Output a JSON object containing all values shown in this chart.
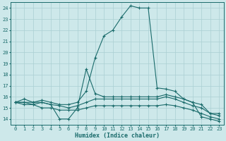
{
  "title": "",
  "xlabel": "Humidex (Indice chaleur)",
  "ylabel": "",
  "bg_color": "#cde8ea",
  "grid_color": "#aacfd2",
  "line_color": "#1a6b6b",
  "xlim": [
    -0.5,
    23.5
  ],
  "ylim": [
    13.5,
    24.5
  ],
  "xticks": [
    0,
    1,
    2,
    3,
    4,
    5,
    6,
    7,
    8,
    9,
    10,
    11,
    12,
    13,
    14,
    15,
    16,
    17,
    18,
    19,
    20,
    21,
    22,
    23
  ],
  "yticks": [
    14,
    15,
    16,
    17,
    18,
    19,
    20,
    21,
    22,
    23,
    24
  ],
  "series": [
    {
      "x": [
        0,
        1,
        2,
        3,
        4,
        5,
        6,
        7,
        8,
        9,
        10,
        11,
        12,
        13,
        14,
        15,
        16,
        17,
        18,
        19,
        20,
        21,
        22,
        23
      ],
      "y": [
        15.5,
        15.8,
        15.5,
        15.7,
        15.5,
        15.3,
        15.3,
        15.5,
        16.5,
        19.5,
        21.5,
        22.0,
        23.2,
        24.2,
        24.0,
        24.0,
        16.8,
        16.7,
        16.5,
        15.8,
        15.5,
        14.2,
        14.0,
        13.8
      ]
    },
    {
      "x": [
        0,
        1,
        2,
        3,
        4,
        5,
        6,
        7,
        8,
        9,
        10,
        11,
        12,
        13,
        14,
        15,
        16,
        17,
        18,
        19,
        20,
        21,
        22,
        23
      ],
      "y": [
        15.5,
        15.5,
        15.3,
        15.5,
        15.3,
        14.0,
        14.0,
        15.0,
        18.5,
        16.3,
        16.0,
        16.0,
        16.0,
        16.0,
        16.0,
        16.0,
        16.0,
        16.2,
        16.0,
        15.8,
        15.5,
        15.3,
        14.5,
        14.5
      ]
    },
    {
      "x": [
        0,
        1,
        2,
        3,
        4,
        5,
        6,
        7,
        8,
        9,
        10,
        11,
        12,
        13,
        14,
        15,
        16,
        17,
        18,
        19,
        20,
        21,
        22,
        23
      ],
      "y": [
        15.5,
        15.5,
        15.5,
        15.5,
        15.3,
        15.2,
        15.0,
        15.2,
        15.5,
        15.8,
        15.8,
        15.8,
        15.8,
        15.8,
        15.8,
        15.8,
        15.8,
        16.0,
        15.8,
        15.5,
        15.2,
        15.0,
        14.5,
        14.3
      ]
    },
    {
      "x": [
        0,
        1,
        2,
        3,
        4,
        5,
        6,
        7,
        8,
        9,
        10,
        11,
        12,
        13,
        14,
        15,
        16,
        17,
        18,
        19,
        20,
        21,
        22,
        23
      ],
      "y": [
        15.5,
        15.3,
        15.3,
        15.0,
        15.0,
        14.8,
        14.8,
        14.8,
        15.0,
        15.2,
        15.2,
        15.2,
        15.2,
        15.2,
        15.2,
        15.2,
        15.2,
        15.3,
        15.2,
        15.0,
        14.8,
        14.5,
        14.2,
        14.0
      ]
    }
  ]
}
